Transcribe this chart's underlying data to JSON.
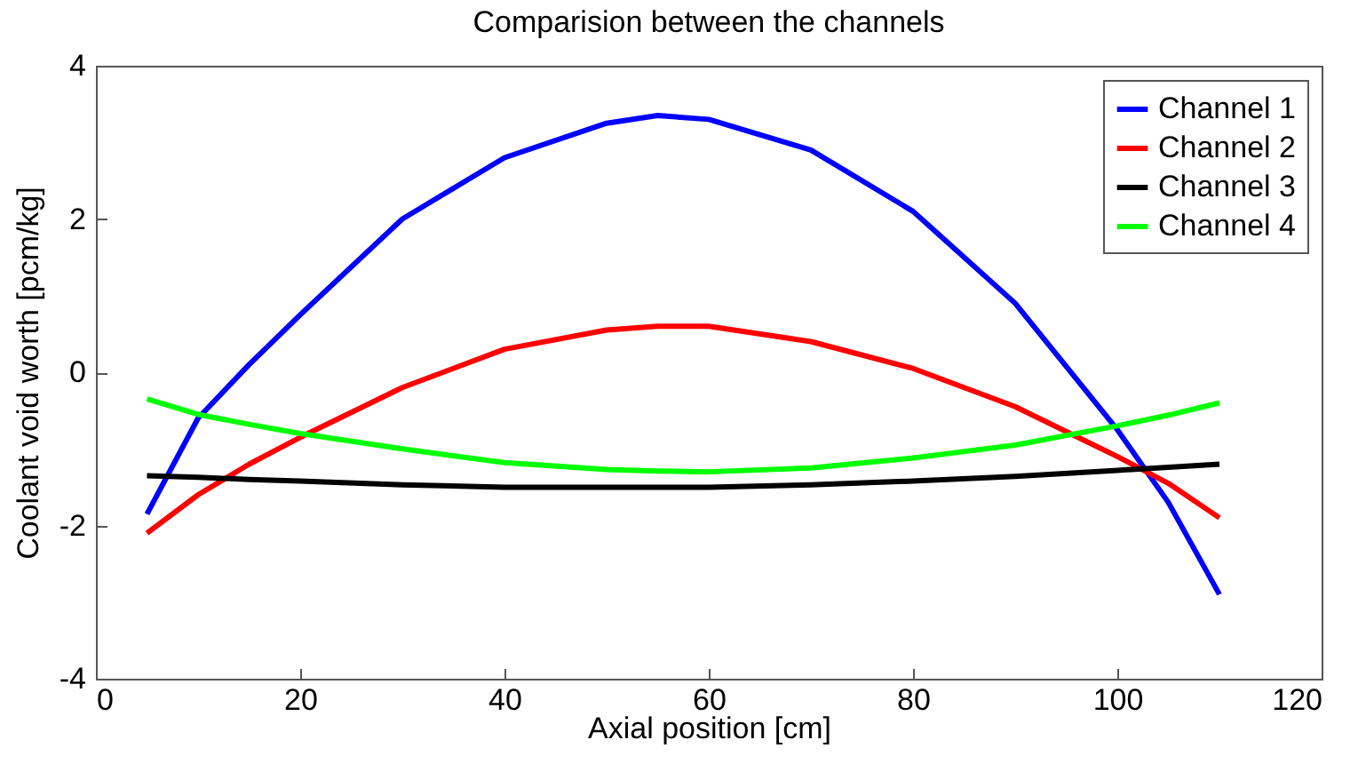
{
  "chart_data": {
    "type": "line",
    "title": "Comparision between the channels",
    "xlabel": "Axial position [cm]",
    "ylabel": "Coolant void worth [pcm/kg]",
    "x": [
      5,
      10,
      15,
      20,
      30,
      40,
      50,
      55,
      60,
      70,
      80,
      90,
      100,
      105,
      110
    ],
    "series": [
      {
        "name": "Channel 1",
        "color": "#0000ff",
        "values": [
          -1.85,
          -0.6,
          0.1,
          0.75,
          2.0,
          2.8,
          3.25,
          3.35,
          3.3,
          2.9,
          2.1,
          0.9,
          -0.75,
          -1.7,
          -2.9
        ]
      },
      {
        "name": "Channel 2",
        "color": "#ff0000",
        "values": [
          -2.1,
          -1.6,
          -1.2,
          -0.85,
          -0.2,
          0.3,
          0.55,
          0.6,
          0.6,
          0.4,
          0.05,
          -0.45,
          -1.1,
          -1.45,
          -1.9
        ]
      },
      {
        "name": "Channel 3",
        "color": "#000000",
        "values": [
          -1.35,
          -1.37,
          -1.4,
          -1.42,
          -1.47,
          -1.5,
          -1.5,
          -1.5,
          -1.5,
          -1.47,
          -1.42,
          -1.36,
          -1.28,
          -1.24,
          -1.2
        ]
      },
      {
        "name": "Channel 4",
        "color": "#00ff00",
        "values": [
          -0.35,
          -0.55,
          -0.68,
          -0.8,
          -1.0,
          -1.18,
          -1.27,
          -1.29,
          -1.3,
          -1.25,
          -1.12,
          -0.95,
          -0.7,
          -0.56,
          -0.4
        ]
      }
    ],
    "xlim": [
      0,
      120
    ],
    "xticks": [
      0,
      20,
      40,
      60,
      80,
      100,
      120
    ],
    "ylim": [
      -4,
      4
    ],
    "yticks": [
      -4,
      -2,
      0,
      2,
      4
    ],
    "legend": "top right",
    "grid": false
  }
}
